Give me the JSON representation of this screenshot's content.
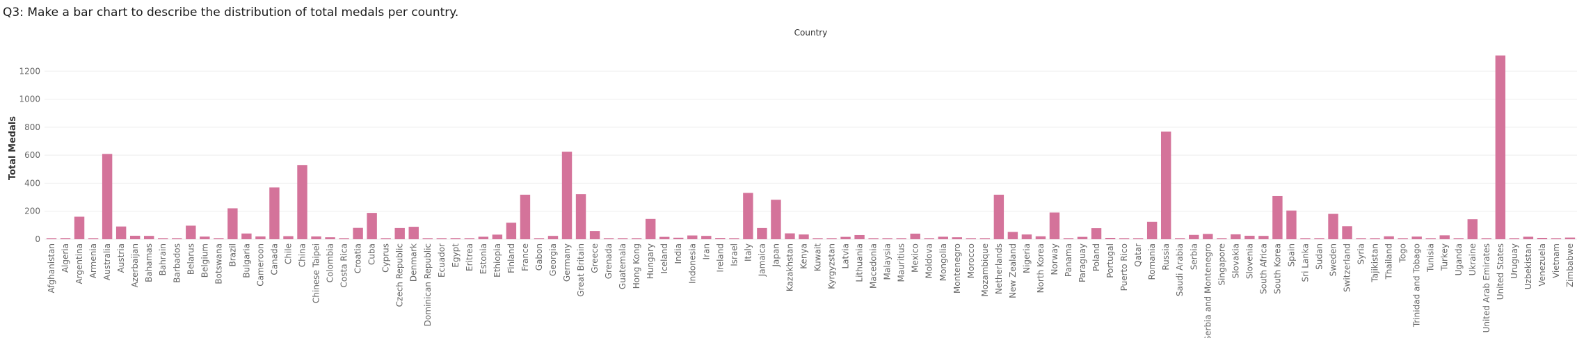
{
  "page": {
    "title": "Q3: Make a bar chart to describe the distribution of total medals per country."
  },
  "chart_data": {
    "type": "bar",
    "column_header": "Country",
    "ylabel": "Total Medals",
    "ylim": [
      0,
      1400
    ],
    "yticks": [
      0,
      200,
      400,
      600,
      800,
      1000,
      1200
    ],
    "grid": true,
    "bar_color": "#d4739a",
    "categories": [
      "Afghanistan",
      "Algeria",
      "Argentina",
      "Armenia",
      "Australia",
      "Austria",
      "Azerbaijan",
      "Bahamas",
      "Bahrain",
      "Barbados",
      "Belarus",
      "Belgium",
      "Botswana",
      "Brazil",
      "Bulgaria",
      "Cameroon",
      "Canada",
      "Chile",
      "China",
      "Chinese Taipei",
      "Colombia",
      "Costa Rica",
      "Croatia",
      "Cuba",
      "Cyprus",
      "Czech Republic",
      "Denmark",
      "Dominican Republic",
      "Ecuador",
      "Egypt",
      "Eritrea",
      "Estonia",
      "Ethiopia",
      "Finland",
      "France",
      "Gabon",
      "Georgia",
      "Germany",
      "Great Britain",
      "Greece",
      "Grenada",
      "Guatemala",
      "Hong Kong",
      "Hungary",
      "Iceland",
      "India",
      "Indonesia",
      "Iran",
      "Ireland",
      "Israel",
      "Italy",
      "Jamaica",
      "Japan",
      "Kazakhstan",
      "Kenya",
      "Kuwait",
      "Kyrgyzstan",
      "Latvia",
      "Lithuania",
      "Macedonia",
      "Malaysia",
      "Mauritius",
      "Mexico",
      "Moldova",
      "Mongolia",
      "Montenegro",
      "Morocco",
      "Mozambique",
      "Netherlands",
      "New Zealand",
      "Nigeria",
      "North Korea",
      "Norway",
      "Panama",
      "Paraguay",
      "Poland",
      "Portugal",
      "Puerto Rico",
      "Qatar",
      "Romania",
      "Russia",
      "Saudi Arabia",
      "Serbia",
      "Serbia and Montenegro",
      "Singapore",
      "Slovakia",
      "Slovenia",
      "South Africa",
      "South Korea",
      "Spain",
      "Sri Lanka",
      "Sudan",
      "Sweden",
      "Switzerland",
      "Syria",
      "Tajikistan",
      "Thailand",
      "Togo",
      "Trinidad and Tobago",
      "Tunisia",
      "Turkey",
      "Uganda",
      "Ukraine",
      "United Arab Emirates",
      "United States",
      "Uruguay",
      "Uzbekistan",
      "Venezuela",
      "Vietnam",
      "Zimbabwe"
    ],
    "values": [
      1,
      8,
      161,
      4,
      609,
      91,
      25,
      24,
      1,
      1,
      97,
      19,
      1,
      221,
      41,
      20,
      370,
      22,
      530,
      20,
      14,
      4,
      81,
      188,
      1,
      80,
      89,
      5,
      1,
      8,
      1,
      18,
      33,
      118,
      318,
      1,
      24,
      625,
      322,
      59,
      1,
      1,
      3,
      145,
      17,
      11,
      27,
      24,
      9,
      4,
      331,
      80,
      282,
      42,
      34,
      2,
      3,
      17,
      30,
      1,
      3,
      1,
      40,
      5,
      18,
      14,
      6,
      1,
      318,
      52,
      34,
      21,
      191,
      1,
      17,
      79,
      10,
      1,
      6,
      125,
      768,
      6,
      31,
      38,
      7,
      35,
      25,
      24,
      308,
      205,
      1,
      1,
      181,
      93,
      1,
      4,
      21,
      1,
      19,
      4,
      28,
      2,
      143,
      1,
      1312,
      1,
      18,
      10,
      1,
      12
    ]
  }
}
